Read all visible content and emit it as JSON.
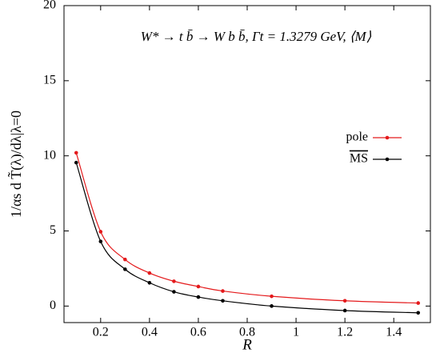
{
  "chart_data": {
    "type": "line",
    "title": "W* → t b̄ → W b b̄,  Γt = 1.3279 GeV,  ⟨M⟩",
    "x_label": "R",
    "y_label": "1/αs d T̃(λ)/dλ|λ=0",
    "x": [
      0.1,
      0.2,
      0.3,
      0.4,
      0.5,
      0.6,
      0.7,
      0.9,
      1.2,
      1.5
    ],
    "series": [
      {
        "name": "pole",
        "color": "#e41a1c",
        "values": [
          10.2,
          4.95,
          3.1,
          2.2,
          1.65,
          1.3,
          1.0,
          0.65,
          0.35,
          0.2
        ]
      },
      {
        "name": "MS",
        "color": "#000000",
        "values": [
          9.55,
          4.3,
          2.45,
          1.55,
          0.95,
          0.6,
          0.35,
          0.0,
          -0.3,
          -0.45
        ]
      }
    ],
    "xlim": [
      0.05,
      1.55
    ],
    "ylim": [
      -1.1,
      20
    ],
    "xticks": [
      0.2,
      0.4,
      0.6,
      0.8,
      1,
      1.2,
      1.4
    ],
    "yticks": [
      0,
      5,
      10,
      15,
      20
    ],
    "legend": "right"
  }
}
